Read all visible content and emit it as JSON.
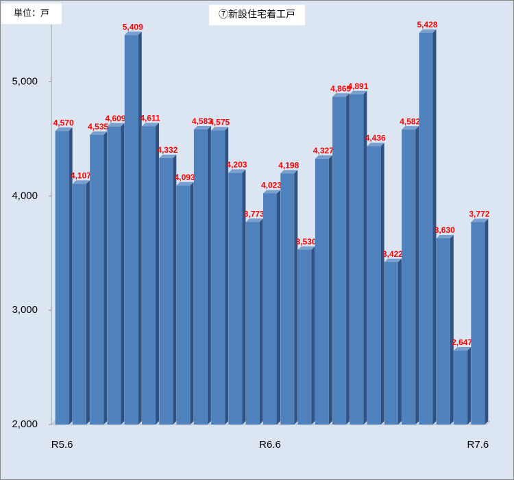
{
  "chart_data": {
    "type": "bar",
    "title": "⑦新設住宅着工戸",
    "unit_label": "単位：戸",
    "categories": [
      "R5.6",
      null,
      null,
      null,
      null,
      null,
      null,
      null,
      null,
      null,
      null,
      null,
      "R6.6",
      null,
      null,
      null,
      null,
      null,
      null,
      null,
      null,
      null,
      null,
      null,
      "R7.6"
    ],
    "values": [
      4570,
      4107,
      4535,
      4609,
      5409,
      4611,
      4332,
      4093,
      4583,
      4575,
      4203,
      3773,
      4023,
      4198,
      3530,
      4327,
      4869,
      4891,
      4436,
      3422,
      4582,
      5428,
      3630,
      2647,
      3772
    ],
    "value_labels": [
      "4,570",
      "4,107",
      "4,535",
      "4,609",
      "5,409",
      "4,611",
      "4,332",
      "4,093",
      "4,583",
      "4,575",
      "4,203",
      "3,773",
      "4,023",
      "4,198",
      "3,530",
      "4,327",
      "4,869",
      "4,891",
      "4,436",
      "3,422",
      "4,582",
      "5,428",
      "3,630",
      "2,647",
      "3,772"
    ],
    "color": "#4f81bd",
    "label_color": "#ff0000",
    "ylim": [
      2000,
      5500
    ],
    "yticks": [
      {
        "value": 2000,
        "label": "2,000"
      },
      {
        "value": 3000,
        "label": "3,000"
      },
      {
        "value": 4000,
        "label": "4,000"
      },
      {
        "value": 5000,
        "label": "5,000"
      }
    ],
    "grid": false
  }
}
